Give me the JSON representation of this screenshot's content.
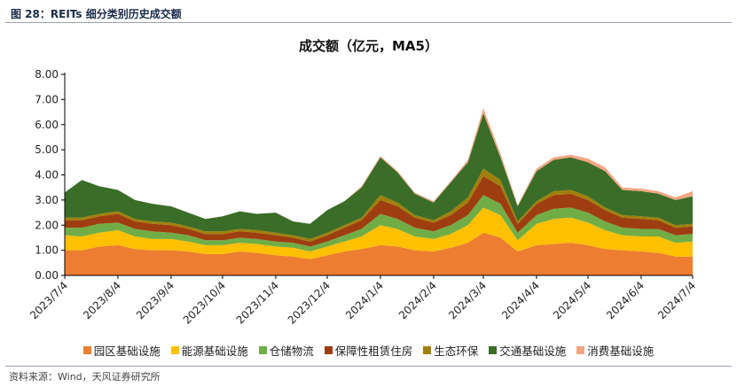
{
  "caption": "图 28：REITs 细分类别历史成交额",
  "source": "资料来源：Wind，天风证券研究所",
  "chart_data": {
    "type": "area",
    "stacked": true,
    "title": "成交额（亿元，MA5）",
    "xlabel": "",
    "ylabel": "",
    "ylim": [
      0,
      8
    ],
    "yticks": [
      "0.00",
      "1.00",
      "2.00",
      "3.00",
      "4.00",
      "5.00",
      "6.00",
      "7.00",
      "8.00"
    ],
    "x_ticks": [
      "2023/7/4",
      "2023/8/4",
      "2023/9/4",
      "2023/10/4",
      "2023/11/4",
      "2023/12/4",
      "2024/1/4",
      "2024/2/4",
      "2024/3/4",
      "2024/4/4",
      "2024/5/4",
      "2024/6/4",
      "2024/7/4"
    ],
    "x": [
      "2023/7/4",
      "2023/7/14",
      "2023/7/24",
      "2023/8/4",
      "2023/8/14",
      "2023/8/24",
      "2023/9/4",
      "2023/9/14",
      "2023/9/24",
      "2023/10/4",
      "2023/10/14",
      "2023/10/24",
      "2023/11/4",
      "2023/11/14",
      "2023/11/24",
      "2023/12/4",
      "2023/12/14",
      "2023/12/24",
      "2024/1/4",
      "2024/1/14",
      "2024/1/24",
      "2024/2/4",
      "2024/2/14",
      "2024/2/24",
      "2024/3/4",
      "2024/3/14",
      "2024/3/24",
      "2024/4/4",
      "2024/4/14",
      "2024/4/24",
      "2024/5/4",
      "2024/5/14",
      "2024/5/24",
      "2024/6/4",
      "2024/6/14",
      "2024/6/24",
      "2024/7/4"
    ],
    "series": [
      {
        "name": "园区基础设施",
        "color": "#ED7D31",
        "values": [
          1.0,
          1.0,
          1.15,
          1.2,
          1.05,
          1.0,
          1.0,
          0.95,
          0.85,
          0.85,
          0.95,
          0.9,
          0.8,
          0.75,
          0.65,
          0.8,
          0.95,
          1.05,
          1.2,
          1.15,
          1.0,
          0.95,
          1.1,
          1.3,
          1.7,
          1.5,
          0.95,
          1.2,
          1.25,
          1.3,
          1.2,
          1.05,
          1.0,
          0.95,
          0.9,
          0.75,
          0.75
        ]
      },
      {
        "name": "能源基础设施",
        "color": "#FFC000",
        "values": [
          0.6,
          0.55,
          0.55,
          0.6,
          0.5,
          0.45,
          0.45,
          0.4,
          0.35,
          0.35,
          0.35,
          0.35,
          0.35,
          0.35,
          0.3,
          0.35,
          0.4,
          0.5,
          0.8,
          0.7,
          0.55,
          0.5,
          0.55,
          0.7,
          1.0,
          0.9,
          0.45,
          0.85,
          1.0,
          1.0,
          0.9,
          0.75,
          0.6,
          0.6,
          0.65,
          0.55,
          0.6
        ]
      },
      {
        "name": "仓储物流",
        "color": "#70AD47",
        "values": [
          0.3,
          0.35,
          0.35,
          0.3,
          0.3,
          0.3,
          0.25,
          0.25,
          0.2,
          0.2,
          0.2,
          0.2,
          0.2,
          0.2,
          0.2,
          0.2,
          0.25,
          0.3,
          0.45,
          0.4,
          0.35,
          0.3,
          0.35,
          0.4,
          0.5,
          0.45,
          0.3,
          0.35,
          0.4,
          0.4,
          0.4,
          0.35,
          0.3,
          0.3,
          0.3,
          0.3,
          0.3
        ]
      },
      {
        "name": "保障性租赁住房",
        "color": "#9E3E10",
        "values": [
          0.3,
          0.3,
          0.3,
          0.35,
          0.3,
          0.3,
          0.3,
          0.25,
          0.25,
          0.25,
          0.25,
          0.25,
          0.25,
          0.2,
          0.2,
          0.25,
          0.3,
          0.35,
          0.55,
          0.5,
          0.4,
          0.35,
          0.4,
          0.5,
          0.75,
          0.7,
          0.35,
          0.45,
          0.55,
          0.55,
          0.5,
          0.45,
          0.4,
          0.4,
          0.35,
          0.3,
          0.3
        ]
      },
      {
        "name": "生态环保",
        "color": "#A0800B",
        "values": [
          0.1,
          0.1,
          0.1,
          0.1,
          0.1,
          0.1,
          0.1,
          0.1,
          0.1,
          0.1,
          0.1,
          0.1,
          0.1,
          0.1,
          0.1,
          0.1,
          0.1,
          0.1,
          0.2,
          0.15,
          0.1,
          0.1,
          0.15,
          0.2,
          0.3,
          0.25,
          0.1,
          0.1,
          0.15,
          0.15,
          0.15,
          0.1,
          0.1,
          0.1,
          0.1,
          0.1,
          0.1
        ]
      },
      {
        "name": "交通基础设施",
        "color": "#3A6D27",
        "values": [
          1.0,
          1.5,
          1.1,
          0.85,
          0.75,
          0.7,
          0.65,
          0.55,
          0.5,
          0.6,
          0.7,
          0.65,
          0.8,
          0.55,
          0.6,
          0.9,
          0.95,
          1.2,
          1.5,
          1.2,
          0.85,
          0.7,
          1.15,
          1.4,
          2.2,
          0.9,
          0.6,
          1.2,
          1.25,
          1.3,
          1.35,
          1.45,
          1.0,
          1.0,
          0.95,
          1.0,
          1.1
        ]
      },
      {
        "name": "消费基础设施",
        "color": "#F4A582",
        "values": [
          0.0,
          0.0,
          0.0,
          0.0,
          0.0,
          0.0,
          0.0,
          0.0,
          0.0,
          0.0,
          0.0,
          0.0,
          0.0,
          0.0,
          0.0,
          0.0,
          0.0,
          0.05,
          0.05,
          0.05,
          0.05,
          0.05,
          0.05,
          0.1,
          0.2,
          0.15,
          0.05,
          0.1,
          0.1,
          0.1,
          0.15,
          0.15,
          0.1,
          0.1,
          0.1,
          0.1,
          0.2
        ]
      }
    ]
  }
}
